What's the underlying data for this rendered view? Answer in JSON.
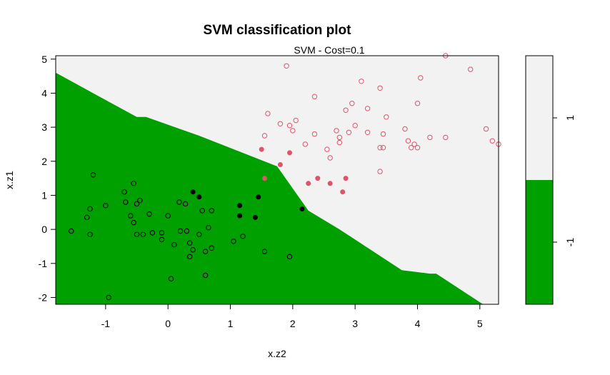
{
  "chart_data": {
    "type": "scatter",
    "title": "SVM classification plot",
    "subtitle": "SVM - Cost=0.1",
    "xlabel": "x.z2",
    "ylabel": "x.z1",
    "xlim": [
      -1.8,
      5.3
    ],
    "ylim": [
      -2.2,
      5.1
    ],
    "x_ticks": [
      -1,
      0,
      1,
      2,
      3,
      4,
      5
    ],
    "y_ticks": [
      -2,
      -1,
      0,
      1,
      2,
      3,
      4,
      5
    ],
    "decision_boundary": [
      [
        -1.8,
        4.6
      ],
      [
        -0.5,
        3.3
      ],
      [
        -0.35,
        3.3
      ],
      [
        0.5,
        2.75
      ],
      [
        1.75,
        1.85
      ],
      [
        2.25,
        0.55
      ],
      [
        2.75,
        0.0
      ],
      [
        3.75,
        -1.2
      ],
      [
        4.2,
        -1.3
      ],
      [
        4.3,
        -1.3
      ],
      [
        5.05,
        -2.2
      ]
    ],
    "colors": {
      "class_neg": "#00A000",
      "class_pos": "#F2F2F2",
      "points_neg": "#000000",
      "points_pos": "#DF536B"
    },
    "legend": {
      "labels": [
        "1",
        "-1"
      ],
      "position": "right"
    },
    "series": [
      {
        "name": "-1",
        "marker": "open",
        "points": [
          [
            -1.2,
            1.6
          ],
          [
            -1.25,
            0.6
          ],
          [
            -1.3,
            0.35
          ],
          [
            -1.25,
            -0.15
          ],
          [
            -1.55,
            -0.05
          ],
          [
            -1.0,
            0.7
          ],
          [
            -0.95,
            -2.0
          ],
          [
            -0.7,
            1.1
          ],
          [
            -0.68,
            0.8
          ],
          [
            -0.55,
            1.35
          ],
          [
            -0.5,
            0.75
          ],
          [
            -0.45,
            0.85
          ],
          [
            -0.6,
            0.4
          ],
          [
            -0.55,
            0.2
          ],
          [
            -0.5,
            -0.15
          ],
          [
            -0.4,
            -0.15
          ],
          [
            -0.3,
            0.45
          ],
          [
            -0.25,
            -0.1
          ],
          [
            -0.1,
            -0.1
          ],
          [
            -0.1,
            -0.3
          ],
          [
            0.0,
            0.4
          ],
          [
            0.05,
            -1.45
          ],
          [
            0.1,
            -0.45
          ],
          [
            0.18,
            0.8
          ],
          [
            0.2,
            -0.05
          ],
          [
            0.28,
            0.75
          ],
          [
            0.3,
            -0.05
          ],
          [
            0.35,
            -0.8
          ],
          [
            0.35,
            -0.4
          ],
          [
            0.4,
            -0.6
          ],
          [
            0.5,
            -0.15
          ],
          [
            0.55,
            0.55
          ],
          [
            0.6,
            -0.65
          ],
          [
            0.6,
            -1.35
          ],
          [
            0.65,
            0.05
          ],
          [
            0.7,
            0.55
          ],
          [
            0.7,
            -0.55
          ],
          [
            1.05,
            -0.35
          ],
          [
            1.2,
            -0.2
          ],
          [
            1.55,
            -0.65
          ],
          [
            1.95,
            -0.8
          ]
        ]
      },
      {
        "name": "-1",
        "marker": "filled",
        "points": [
          [
            0.4,
            1.1
          ],
          [
            0.5,
            0.95
          ],
          [
            1.15,
            0.7
          ],
          [
            1.15,
            0.4
          ],
          [
            1.45,
            0.95
          ],
          [
            1.4,
            0.35
          ],
          [
            2.15,
            0.6
          ]
        ]
      },
      {
        "name": "1",
        "marker": "filled",
        "points": [
          [
            1.5,
            2.35
          ],
          [
            1.55,
            1.5
          ],
          [
            1.8,
            1.9
          ],
          [
            1.95,
            2.25
          ],
          [
            2.25,
            1.35
          ],
          [
            2.4,
            1.5
          ],
          [
            2.6,
            1.35
          ],
          [
            2.85,
            1.5
          ],
          [
            2.8,
            1.1
          ]
        ]
      },
      {
        "name": "1",
        "marker": "open",
        "points": [
          [
            1.9,
            4.8
          ],
          [
            1.55,
            2.75
          ],
          [
            1.6,
            3.4
          ],
          [
            1.8,
            3.1
          ],
          [
            1.95,
            3.05
          ],
          [
            2.0,
            2.9
          ],
          [
            2.05,
            3.2
          ],
          [
            2.2,
            2.5
          ],
          [
            2.35,
            3.9
          ],
          [
            2.35,
            2.8
          ],
          [
            2.55,
            2.35
          ],
          [
            2.6,
            2.1
          ],
          [
            2.7,
            2.9
          ],
          [
            2.75,
            2.7
          ],
          [
            2.75,
            2.55
          ],
          [
            2.85,
            3.5
          ],
          [
            2.9,
            2.85
          ],
          [
            2.95,
            3.7
          ],
          [
            3.0,
            3.05
          ],
          [
            3.1,
            4.35
          ],
          [
            3.2,
            3.55
          ],
          [
            3.2,
            2.85
          ],
          [
            3.4,
            4.15
          ],
          [
            3.4,
            2.4
          ],
          [
            3.4,
            1.7
          ],
          [
            3.45,
            2.8
          ],
          [
            3.45,
            2.4
          ],
          [
            3.5,
            3.3
          ],
          [
            3.8,
            2.95
          ],
          [
            3.85,
            2.6
          ],
          [
            3.9,
            2.4
          ],
          [
            3.95,
            2.5
          ],
          [
            4.0,
            3.7
          ],
          [
            4.0,
            2.4
          ],
          [
            4.05,
            4.45
          ],
          [
            4.2,
            2.7
          ],
          [
            4.45,
            5.1
          ],
          [
            4.45,
            2.7
          ],
          [
            4.85,
            4.7
          ],
          [
            5.1,
            2.95
          ],
          [
            5.2,
            2.6
          ],
          [
            5.3,
            2.5
          ]
        ]
      }
    ]
  }
}
